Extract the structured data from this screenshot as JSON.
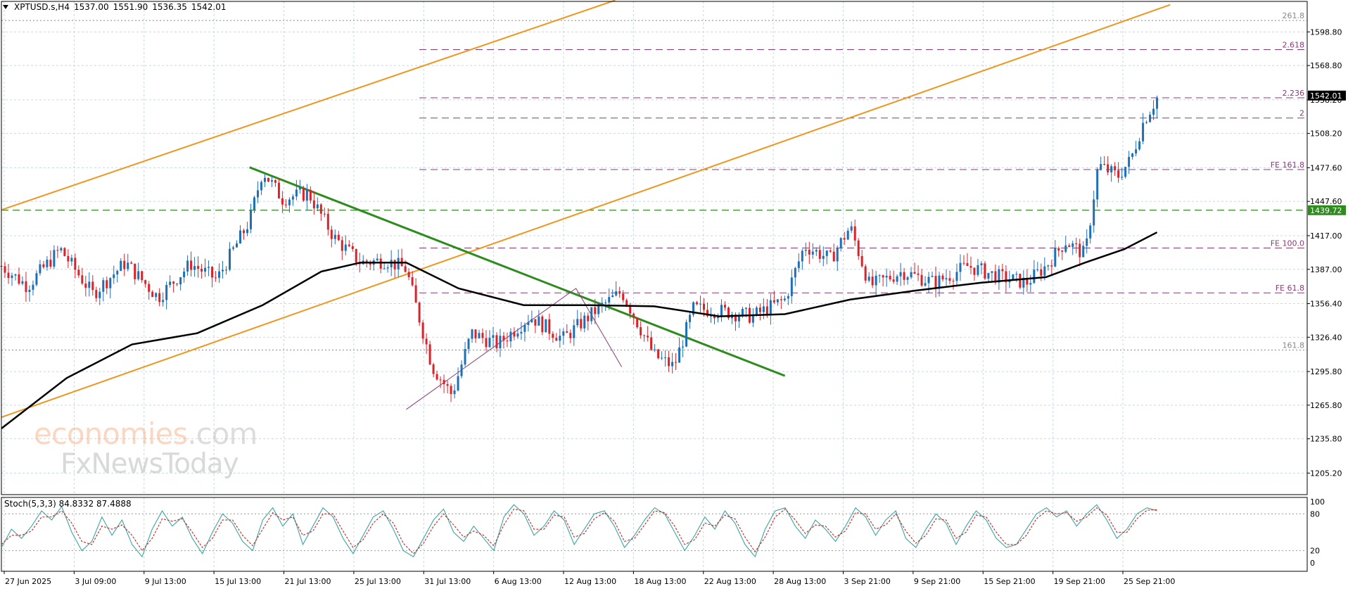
{
  "header": {
    "symbol": "XPTUSD.s,H4",
    "open": "1537.00",
    "high": "1551.90",
    "low": "1536.35",
    "close": "1542.01"
  },
  "watermark": {
    "line1_brand": "economies",
    "line1_suffix": ".com",
    "line2": "FxNewsToday"
  },
  "colors": {
    "bull": "#1f6fb5",
    "bear": "#d9232a",
    "channel": "#f0961e",
    "downtrend": "#2e8b1e",
    "ma": "#000000",
    "fib": "#8a3a7a",
    "hline_green": "#2e8b1e",
    "stoch_main": "#3aa6a6",
    "stoch_signal": "#cc2222",
    "grid": "#c8d8e0"
  },
  "chart_data": [
    {
      "type": "candlestick",
      "title": "XPTUSD.s,H4",
      "price_axis_labels": [
        "1598.80",
        "1568.80",
        "1538.20",
        "1508.20",
        "1477.60",
        "1447.60",
        "1417.00",
        "1387.00",
        "1356.40",
        "1326.40",
        "1295.80",
        "1265.80",
        "1235.80",
        "1205.20"
      ],
      "ylim": [
        1186,
        1626
      ],
      "time_axis_labels": [
        "27 Jun 2025",
        "3 Jul 09:00",
        "9 Jul 13:00",
        "15 Jul 13:00",
        "21 Jul 13:00",
        "25 Jul 13:00",
        "31 Jul 13:00",
        "6 Aug 13:00",
        "12 Aug 13:00",
        "18 Aug 13:00",
        "22 Aug 13:00",
        "28 Aug 13:00",
        "3 Sep 21:00",
        "9 Sep 21:00",
        "15 Sep 21:00",
        "19 Sep 21:00",
        "25 Sep 21:00"
      ],
      "current_price": "1542.01",
      "horizontal_level": {
        "label": "1439.72",
        "value": 1439.72
      },
      "fib_levels": [
        {
          "label": "261.8",
          "value": 1609
        },
        {
          "label": "2.618",
          "value": 1583
        },
        {
          "label": "2.236",
          "value": 1540
        },
        {
          "label": "2",
          "value": 1522
        },
        {
          "label": "FE 161.8",
          "value": 1476
        },
        {
          "label": "FE 100.0",
          "value": 1406
        },
        {
          "label": "FE 61.8",
          "value": 1366
        },
        {
          "label": "161.8",
          "value": 1315
        }
      ],
      "price_path": [
        {
          "t": 0.0,
          "p": 1390
        },
        {
          "t": 0.02,
          "p": 1372
        },
        {
          "t": 0.045,
          "p": 1405
        },
        {
          "t": 0.07,
          "p": 1365
        },
        {
          "t": 0.095,
          "p": 1393
        },
        {
          "t": 0.12,
          "p": 1362
        },
        {
          "t": 0.145,
          "p": 1392
        },
        {
          "t": 0.165,
          "p": 1378
        },
        {
          "t": 0.19,
          "p": 1430
        },
        {
          "t": 0.2,
          "p": 1475
        },
        {
          "t": 0.215,
          "p": 1450
        },
        {
          "t": 0.235,
          "p": 1455
        },
        {
          "t": 0.255,
          "p": 1415
        },
        {
          "t": 0.275,
          "p": 1393
        },
        {
          "t": 0.295,
          "p": 1395
        },
        {
          "t": 0.31,
          "p": 1387
        },
        {
          "t": 0.33,
          "p": 1300
        },
        {
          "t": 0.345,
          "p": 1275
        },
        {
          "t": 0.36,
          "p": 1330
        },
        {
          "t": 0.38,
          "p": 1320
        },
        {
          "t": 0.405,
          "p": 1345
        },
        {
          "t": 0.43,
          "p": 1325
        },
        {
          "t": 0.455,
          "p": 1350
        },
        {
          "t": 0.475,
          "p": 1367
        },
        {
          "t": 0.5,
          "p": 1310
        },
        {
          "t": 0.515,
          "p": 1300
        },
        {
          "t": 0.53,
          "p": 1352
        },
        {
          "t": 0.55,
          "p": 1350
        },
        {
          "t": 0.575,
          "p": 1345
        },
        {
          "t": 0.6,
          "p": 1360
        },
        {
          "t": 0.615,
          "p": 1408
        },
        {
          "t": 0.635,
          "p": 1396
        },
        {
          "t": 0.65,
          "p": 1425
        },
        {
          "t": 0.665,
          "p": 1372
        },
        {
          "t": 0.69,
          "p": 1385
        },
        {
          "t": 0.715,
          "p": 1375
        },
        {
          "t": 0.74,
          "p": 1390
        },
        {
          "t": 0.765,
          "p": 1380
        },
        {
          "t": 0.785,
          "p": 1375
        },
        {
          "t": 0.8,
          "p": 1390
        },
        {
          "t": 0.815,
          "p": 1412
        },
        {
          "t": 0.83,
          "p": 1400
        },
        {
          "t": 0.84,
          "p": 1480
        },
        {
          "t": 0.855,
          "p": 1470
        },
        {
          "t": 0.865,
          "p": 1485
        },
        {
          "t": 0.875,
          "p": 1520
        },
        {
          "t": 0.885,
          "p": 1540
        }
      ],
      "moving_average": [
        {
          "t": 0.0,
          "p": 1245
        },
        {
          "t": 0.05,
          "p": 1290
        },
        {
          "t": 0.1,
          "p": 1320
        },
        {
          "t": 0.15,
          "p": 1330
        },
        {
          "t": 0.2,
          "p": 1355
        },
        {
          "t": 0.245,
          "p": 1385
        },
        {
          "t": 0.275,
          "p": 1393
        },
        {
          "t": 0.31,
          "p": 1393
        },
        {
          "t": 0.35,
          "p": 1370
        },
        {
          "t": 0.4,
          "p": 1355
        },
        {
          "t": 0.45,
          "p": 1355
        },
        {
          "t": 0.5,
          "p": 1354
        },
        {
          "t": 0.55,
          "p": 1345
        },
        {
          "t": 0.6,
          "p": 1347
        },
        {
          "t": 0.65,
          "p": 1360
        },
        {
          "t": 0.7,
          "p": 1368
        },
        {
          "t": 0.75,
          "p": 1375
        },
        {
          "t": 0.8,
          "p": 1380
        },
        {
          "t": 0.83,
          "p": 1393
        },
        {
          "t": 0.86,
          "p": 1405
        },
        {
          "t": 0.885,
          "p": 1420
        }
      ],
      "channel_lower": [
        {
          "t": 0.0,
          "p": 1255
        },
        {
          "t": 0.895,
          "p": 1623
        }
      ],
      "channel_upper": [
        {
          "t": 0.0,
          "p": 1440
        },
        {
          "t": 0.47,
          "p": 1627
        }
      ],
      "downtrend_line": [
        {
          "t": 0.19,
          "p": 1478
        },
        {
          "t": 0.6,
          "p": 1292
        }
      ],
      "fibo_projection_path": [
        {
          "t": 0.31,
          "p": 1262
        },
        {
          "t": 0.44,
          "p": 1370
        },
        {
          "t": 0.475,
          "p": 1300
        }
      ]
    },
    {
      "type": "line",
      "title": "Stoch(5,3,3) 84.8332 87.4888",
      "name": "Stoch(5,3,3)",
      "main_value": "84.8332",
      "signal_value": "87.4888",
      "axis_labels": [
        "100",
        "80",
        "20",
        "0"
      ],
      "ylim": [
        0,
        100
      ],
      "series": [
        {
          "name": "main",
          "values": [
            25,
            55,
            40,
            60,
            85,
            70,
            92,
            50,
            20,
            35,
            75,
            45,
            70,
            30,
            10,
            55,
            85,
            60,
            75,
            40,
            15,
            50,
            80,
            65,
            35,
            20,
            70,
            90,
            60,
            80,
            30,
            60,
            90,
            75,
            40,
            15,
            45,
            75,
            85,
            55,
            20,
            10,
            40,
            70,
            88,
            50,
            35,
            60,
            40,
            20,
            75,
            95,
            80,
            45,
            60,
            85,
            70,
            30,
            55,
            80,
            85,
            60,
            25,
            45,
            70,
            90,
            80,
            50,
            20,
            45,
            75,
            55,
            85,
            65,
            30,
            10,
            55,
            85,
            90,
            60,
            40,
            70,
            55,
            35,
            60,
            90,
            75,
            45,
            70,
            85,
            40,
            25,
            55,
            80,
            65,
            30,
            60,
            85,
            70,
            40,
            25,
            30,
            55,
            80,
            90,
            75,
            85,
            60,
            80,
            95,
            70,
            40,
            55,
            80,
            90,
            85
          ]
        },
        {
          "name": "signal",
          "values": [
            30,
            45,
            45,
            52,
            75,
            75,
            85,
            65,
            35,
            30,
            60,
            55,
            62,
            45,
            20,
            40,
            72,
            68,
            72,
            50,
            25,
            40,
            70,
            70,
            45,
            28,
            55,
            82,
            70,
            75,
            45,
            52,
            80,
            80,
            52,
            25,
            38,
            65,
            80,
            65,
            32,
            15,
            32,
            60,
            80,
            62,
            42,
            52,
            45,
            28,
            62,
            88,
            85,
            55,
            55,
            78,
            75,
            42,
            48,
            72,
            82,
            68,
            35,
            40,
            62,
            85,
            82,
            60,
            30,
            38,
            65,
            60,
            78,
            72,
            42,
            18,
            42,
            75,
            88,
            70,
            48,
            62,
            60,
            42,
            52,
            82,
            80,
            55,
            62,
            80,
            52,
            32,
            45,
            72,
            70,
            40,
            50,
            78,
            75,
            50,
            30,
            30,
            45,
            72,
            85,
            80,
            82,
            68,
            75,
            90,
            78,
            50,
            50,
            72,
            86,
            87
          ]
        }
      ]
    }
  ]
}
